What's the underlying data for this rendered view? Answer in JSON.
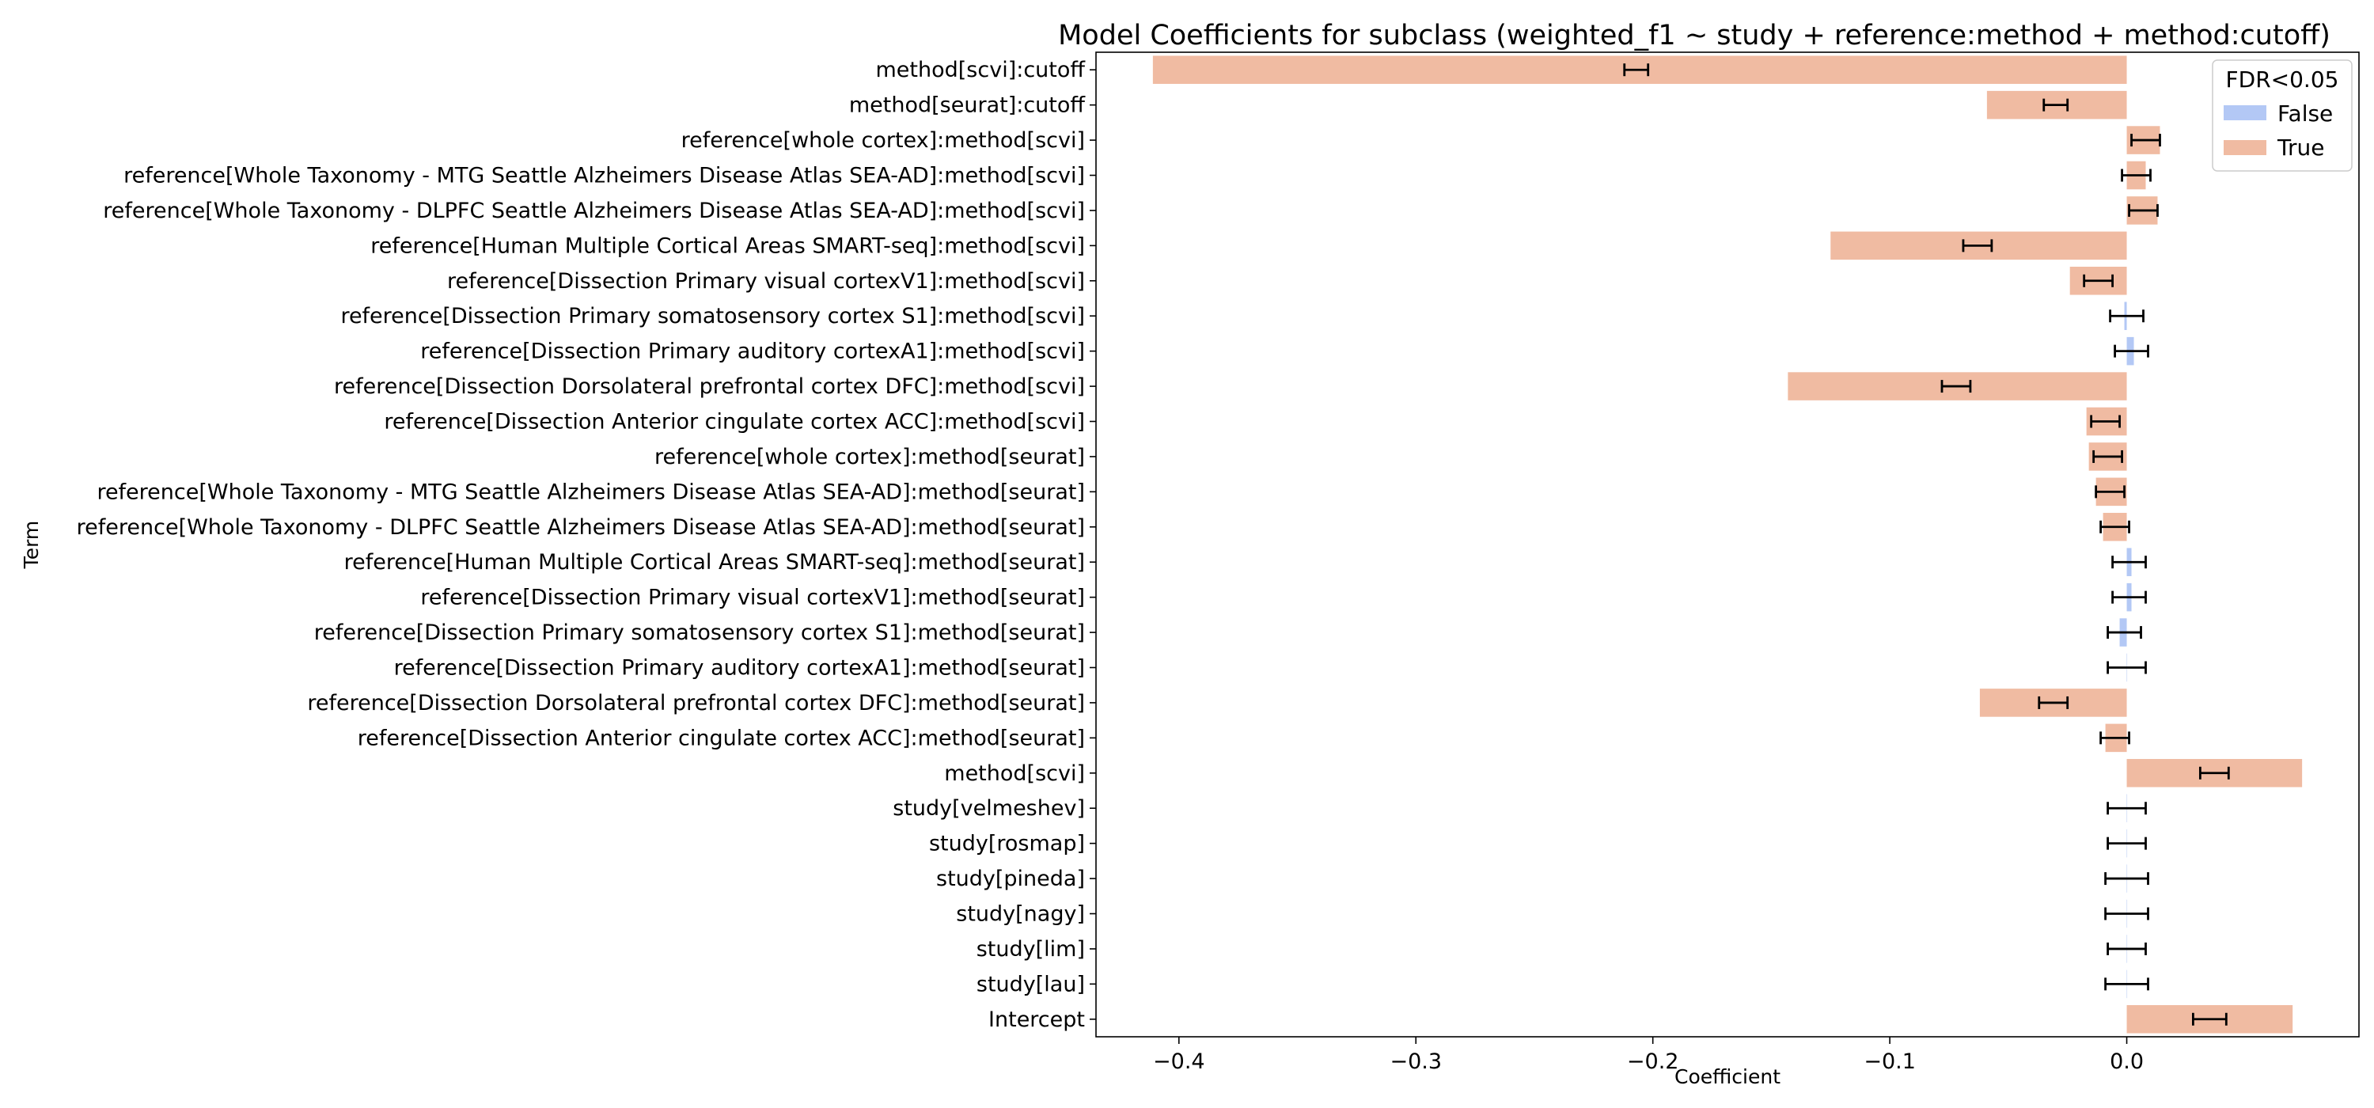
{
  "chart_data": {
    "type": "bar",
    "orientation": "horizontal",
    "title": "Model Coefficients for subclass (weighted_f1 ~  study + reference:method + method:cutoff)",
    "xlabel": "Coefficient",
    "ylabel": "Term",
    "xlim": [
      -0.435,
      0.098
    ],
    "xticks": [
      -0.4,
      -0.3,
      -0.2,
      -0.1,
      0.0
    ],
    "xtick_labels": [
      "−0.4",
      "−0.3",
      "−0.2",
      "−0.1",
      "0.0"
    ],
    "grid": false,
    "legend": {
      "title": "FDR<0.05",
      "placement": "top-right",
      "entries": [
        {
          "label": "False",
          "color": "#b3c8f5"
        },
        {
          "label": "True",
          "color": "#f0bba2"
        }
      ]
    },
    "errorbar_color": "#000000",
    "terms": [
      {
        "label": "method[scvi]:cutoff",
        "value": -0.411,
        "err_center": -0.207,
        "err_half": 0.005,
        "significant": true
      },
      {
        "label": "method[seurat]:cutoff",
        "value": -0.059,
        "err_center": -0.03,
        "err_half": 0.005,
        "significant": true
      },
      {
        "label": "reference[whole cortex]:method[scvi]",
        "value": 0.014,
        "err_center": 0.008,
        "err_half": 0.006,
        "significant": true
      },
      {
        "label": "reference[Whole Taxonomy - MTG Seattle Alzheimers Disease Atlas SEA-AD]:method[scvi]",
        "value": 0.008,
        "err_center": 0.004,
        "err_half": 0.006,
        "significant": true
      },
      {
        "label": "reference[Whole Taxonomy - DLPFC Seattle Alzheimers Disease Atlas SEA-AD]:method[scvi]",
        "value": 0.013,
        "err_center": 0.007,
        "err_half": 0.006,
        "significant": true
      },
      {
        "label": "reference[Human Multiple Cortical Areas SMART-seq]:method[scvi]",
        "value": -0.125,
        "err_center": -0.063,
        "err_half": 0.006,
        "significant": true
      },
      {
        "label": "reference[Dissection Primary visual cortexV1]:method[scvi]",
        "value": -0.024,
        "err_center": -0.012,
        "err_half": 0.006,
        "significant": true
      },
      {
        "label": "reference[Dissection Primary somatosensory cortex S1]:method[scvi]",
        "value": -0.001,
        "err_center": 0.0,
        "err_half": 0.007,
        "significant": false
      },
      {
        "label": "reference[Dissection Primary auditory cortexA1]:method[scvi]",
        "value": 0.003,
        "err_center": 0.002,
        "err_half": 0.007,
        "significant": false
      },
      {
        "label": "reference[Dissection Dorsolateral prefrontal cortex DFC]:method[scvi]",
        "value": -0.143,
        "err_center": -0.072,
        "err_half": 0.006,
        "significant": true
      },
      {
        "label": "reference[Dissection Anterior cingulate cortex ACC]:method[scvi]",
        "value": -0.017,
        "err_center": -0.009,
        "err_half": 0.006,
        "significant": true
      },
      {
        "label": "reference[whole cortex]:method[seurat]",
        "value": -0.016,
        "err_center": -0.008,
        "err_half": 0.006,
        "significant": true
      },
      {
        "label": "reference[Whole Taxonomy - MTG Seattle Alzheimers Disease Atlas SEA-AD]:method[seurat]",
        "value": -0.013,
        "err_center": -0.007,
        "err_half": 0.006,
        "significant": true
      },
      {
        "label": "reference[Whole Taxonomy - DLPFC Seattle Alzheimers Disease Atlas SEA-AD]:method[seurat]",
        "value": -0.01,
        "err_center": -0.005,
        "err_half": 0.006,
        "significant": true
      },
      {
        "label": "reference[Human Multiple Cortical Areas SMART-seq]:method[seurat]",
        "value": 0.002,
        "err_center": 0.001,
        "err_half": 0.007,
        "significant": false
      },
      {
        "label": "reference[Dissection Primary visual cortexV1]:method[seurat]",
        "value": 0.002,
        "err_center": 0.001,
        "err_half": 0.007,
        "significant": false
      },
      {
        "label": "reference[Dissection Primary somatosensory cortex S1]:method[seurat]",
        "value": -0.003,
        "err_center": -0.001,
        "err_half": 0.007,
        "significant": false
      },
      {
        "label": "reference[Dissection Primary auditory cortexA1]:method[seurat]",
        "value": 0.0,
        "err_center": 0.0,
        "err_half": 0.008,
        "significant": false
      },
      {
        "label": "reference[Dissection Dorsolateral prefrontal cortex DFC]:method[seurat]",
        "value": -0.062,
        "err_center": -0.031,
        "err_half": 0.006,
        "significant": true
      },
      {
        "label": "reference[Dissection Anterior cingulate cortex ACC]:method[seurat]",
        "value": -0.009,
        "err_center": -0.005,
        "err_half": 0.006,
        "significant": true
      },
      {
        "label": "method[scvi]",
        "value": 0.074,
        "err_center": 0.037,
        "err_half": 0.006,
        "significant": true
      },
      {
        "label": "study[velmeshev]",
        "value": 0.0,
        "err_center": 0.0,
        "err_half": 0.008,
        "significant": false
      },
      {
        "label": "study[rosmap]",
        "value": 0.0,
        "err_center": 0.0,
        "err_half": 0.008,
        "significant": false
      },
      {
        "label": "study[pineda]",
        "value": 0.0,
        "err_center": 0.0,
        "err_half": 0.009,
        "significant": false
      },
      {
        "label": "study[nagy]",
        "value": 0.0,
        "err_center": 0.0,
        "err_half": 0.009,
        "significant": false
      },
      {
        "label": "study[lim]",
        "value": 0.0,
        "err_center": 0.0,
        "err_half": 0.008,
        "significant": false
      },
      {
        "label": "study[lau]",
        "value": 0.0,
        "err_center": 0.0,
        "err_half": 0.009,
        "significant": false
      },
      {
        "label": "Intercept",
        "value": 0.07,
        "err_center": 0.035,
        "err_half": 0.007,
        "significant": true
      }
    ]
  }
}
